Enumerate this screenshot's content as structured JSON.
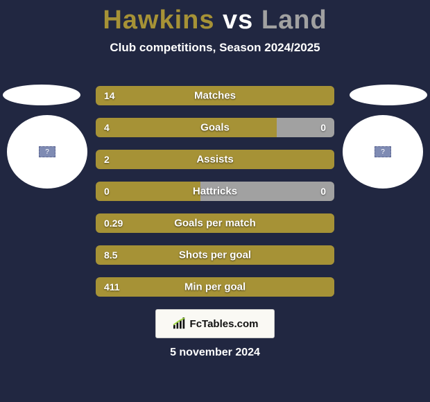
{
  "title": {
    "player1": "Hawkins",
    "vs": "vs",
    "player2": "Land",
    "player1_color": "#a69236",
    "player2_color": "#a1a1a1"
  },
  "subtitle": "Club competitions, Season 2024/2025",
  "background_color": "#212741",
  "bar_background_color": "#3a3f57",
  "stats": [
    {
      "label": "Matches",
      "left_value": "14",
      "right_value": "",
      "left_pct": 100,
      "right_pct": 0
    },
    {
      "label": "Goals",
      "left_value": "4",
      "right_value": "0",
      "left_pct": 76,
      "right_pct": 24
    },
    {
      "label": "Assists",
      "left_value": "2",
      "right_value": "",
      "left_pct": 100,
      "right_pct": 0
    },
    {
      "label": "Hattricks",
      "left_value": "0",
      "right_value": "0",
      "left_pct": 44,
      "right_pct": 56
    },
    {
      "label": "Goals per match",
      "left_value": "0.29",
      "right_value": "",
      "left_pct": 100,
      "right_pct": 0
    },
    {
      "label": "Shots per goal",
      "left_value": "8.5",
      "right_value": "",
      "left_pct": 100,
      "right_pct": 0
    },
    {
      "label": "Min per goal",
      "left_value": "411",
      "right_value": "",
      "left_pct": 100,
      "right_pct": 0
    }
  ],
  "badge_glyph": "?",
  "logo_text": "FcTables.com",
  "date": "5 november 2024"
}
